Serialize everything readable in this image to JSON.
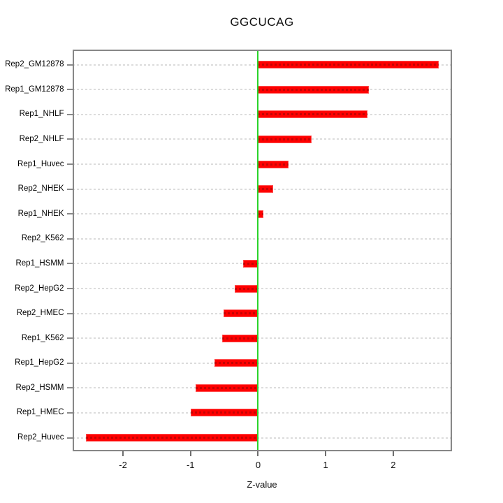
{
  "title": "GGCUCAG",
  "chart_data": {
    "type": "bar",
    "orientation": "horizontal",
    "title": "GGCUCAG",
    "xlabel": "Z-value",
    "ylabel": "",
    "categories": [
      "Rep2_GM12878",
      "Rep1_GM12878",
      "Rep1_NHLF",
      "Rep2_NHLF",
      "Rep1_Huvec",
      "Rep2_NHEK",
      "Rep1_NHEK",
      "Rep2_K562",
      "Rep1_HSMM",
      "Rep2_HepG2",
      "Rep2_HMEC",
      "Rep1_K562",
      "Rep1_HepG2",
      "Rep2_HSMM",
      "Rep1_HMEC",
      "Rep2_Huvec"
    ],
    "values": [
      2.67,
      1.64,
      1.62,
      0.79,
      0.45,
      0.22,
      0.08,
      -0.02,
      -0.22,
      -0.35,
      -0.51,
      -0.53,
      -0.65,
      -0.92,
      -1.0,
      -2.55
    ],
    "xticks": [
      -2,
      -1,
      0,
      1,
      2
    ],
    "xtick_labels": [
      "-2",
      "-1",
      "0",
      "1",
      "2"
    ],
    "xlim": [
      -2.75,
      2.87
    ],
    "zero_reference_line": 0,
    "grid": "dotted horizontal line per category",
    "legend": "none",
    "colors": {
      "bar": "#fe0000",
      "zero_line": "#2bd42b",
      "grid_line": "#dcdcdc",
      "box": "#878787",
      "text": "#000000"
    }
  }
}
